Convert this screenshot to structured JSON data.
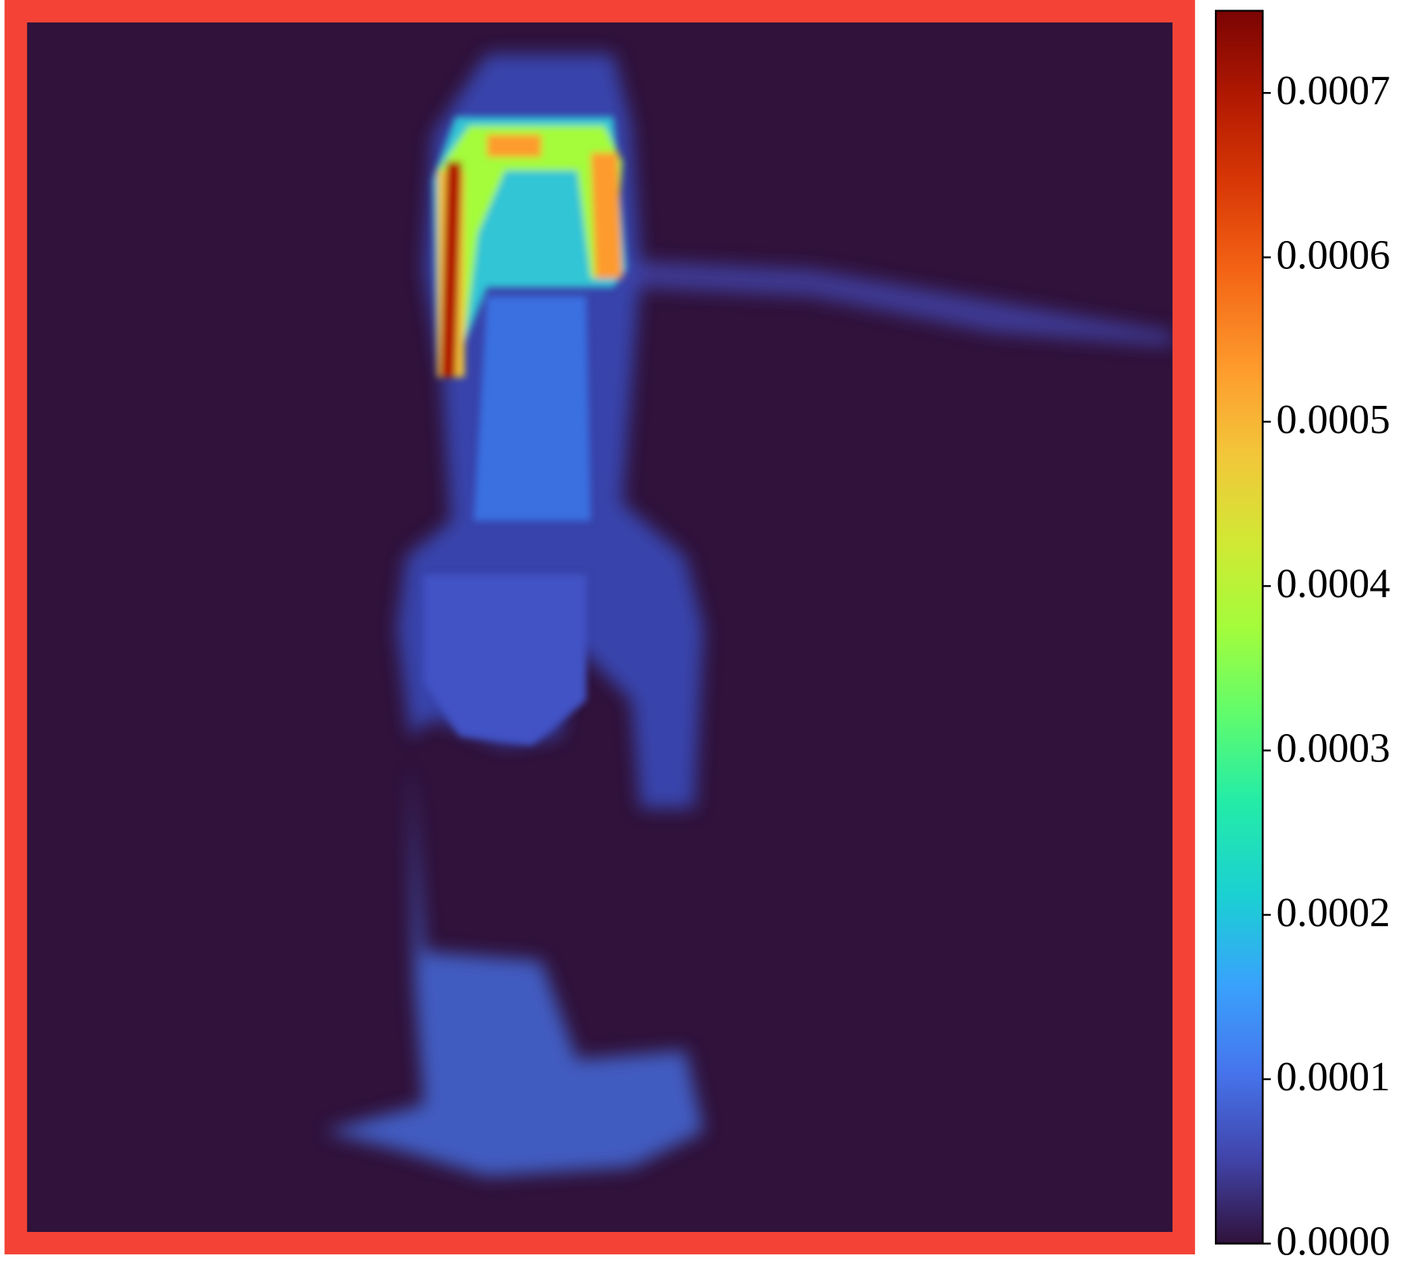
{
  "chart_data": {
    "type": "heatmap",
    "clim": [
      0,
      0.00075
    ],
    "cticks": [
      {
        "value": 0,
        "label": "0.0000"
      },
      0.0001,
      0.0002,
      0.0003,
      0.0004,
      0.0005,
      0.0006,
      0.0007
    ]
  }
}
